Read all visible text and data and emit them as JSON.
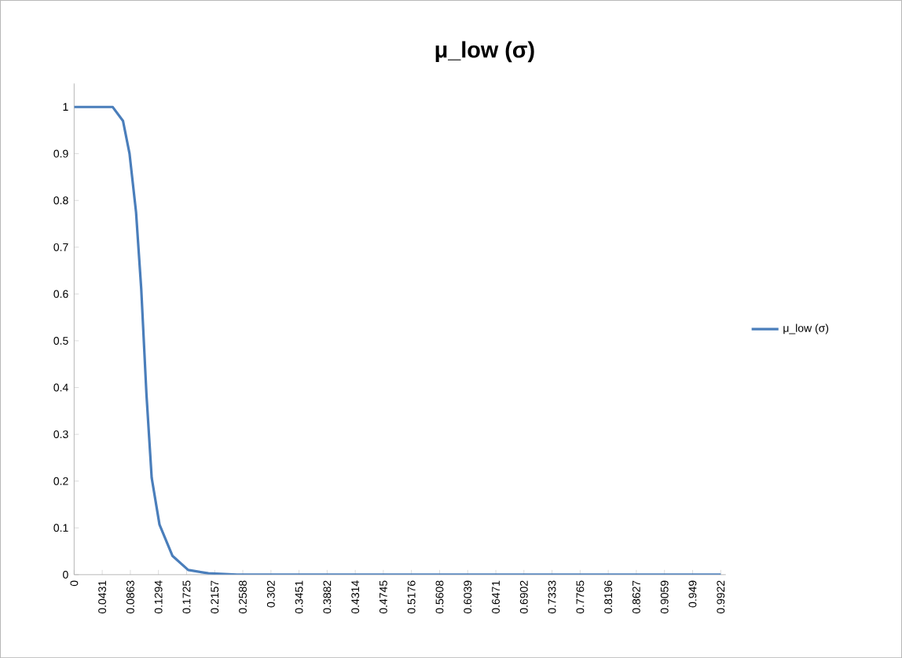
{
  "chart_data": {
    "type": "line",
    "title": "μ_low (σ)",
    "x": [
      0,
      0.03,
      0.059,
      0.075,
      0.085,
      0.095,
      0.103,
      0.111,
      0.119,
      0.131,
      0.151,
      0.175,
      0.206,
      0.25,
      0.4,
      0.6,
      0.8,
      0.9922
    ],
    "series": [
      {
        "name": "μ_low (σ)",
        "color": "#4a7ebb",
        "values": [
          1,
          1,
          1,
          0.97,
          0.9,
          0.775,
          0.61,
          0.385,
          0.207,
          0.107,
          0.04,
          0.01,
          0.003,
          0,
          0,
          0,
          0,
          0
        ]
      }
    ],
    "xlim": [
      0,
      1
    ],
    "ylim": [
      0,
      1.05
    ],
    "xticks": [
      0,
      0.0431,
      0.0863,
      0.1294,
      0.1725,
      0.2157,
      0.2588,
      0.302,
      0.3451,
      0.3882,
      0.4314,
      0.4745,
      0.5176,
      0.5608,
      0.6039,
      0.6471,
      0.6902,
      0.7333,
      0.7765,
      0.8196,
      0.8627,
      0.9059,
      0.949,
      0.9922
    ],
    "yticks": [
      0,
      0.1,
      0.2,
      0.3,
      0.4,
      0.5,
      0.6,
      0.7,
      0.8,
      0.9,
      1
    ],
    "grid": false,
    "legend": "right",
    "marker": "none",
    "line_style": "solid"
  }
}
